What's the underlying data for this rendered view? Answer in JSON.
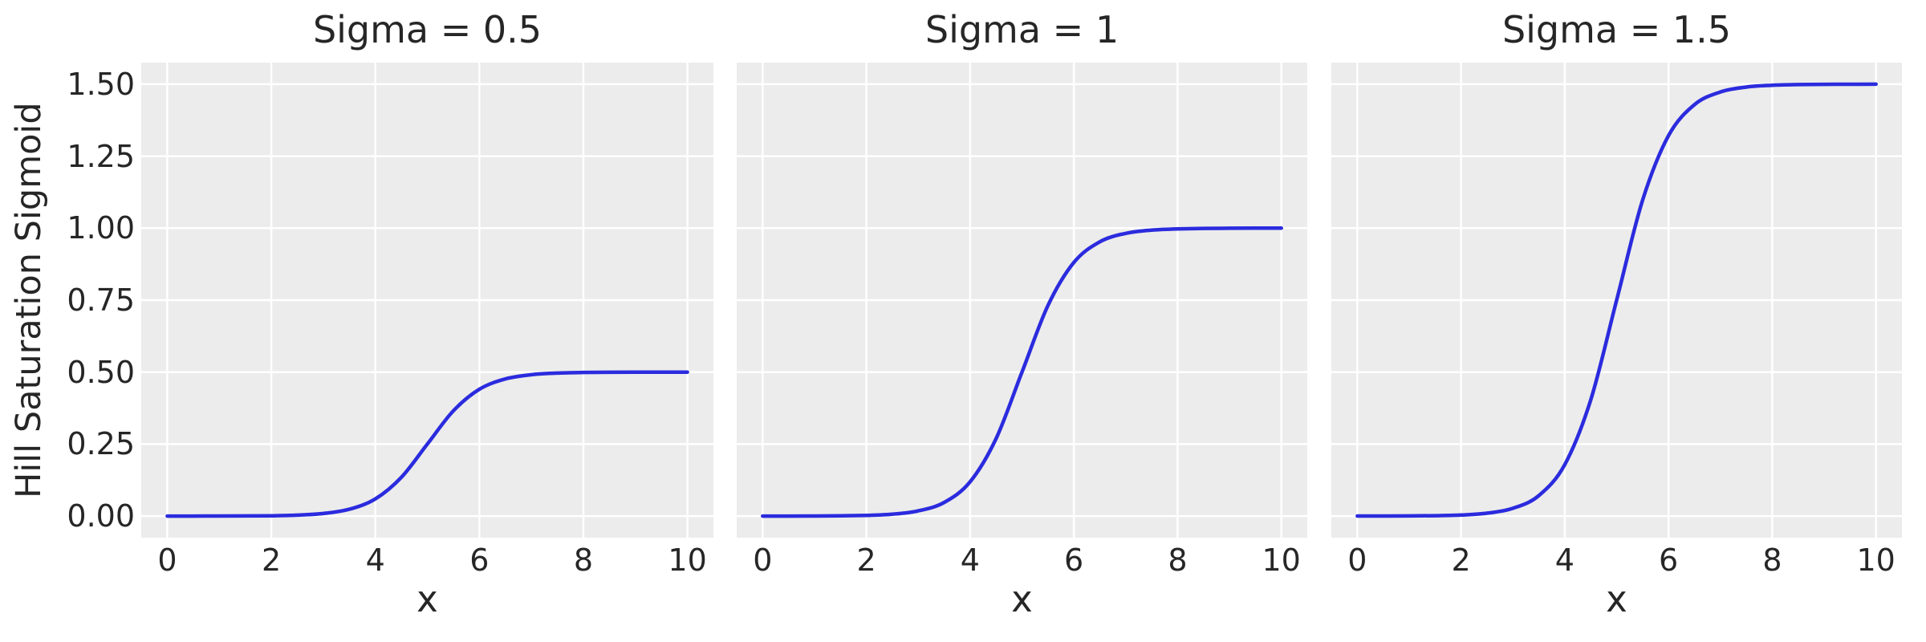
{
  "figure": {
    "ylabel": "Hill Saturation Sigmoid",
    "colors": {
      "background": "#ffffff",
      "axes_background": "#ececec",
      "grid": "#ffffff",
      "line": "#2b2bde",
      "text": "#262626"
    }
  },
  "chart_data": [
    {
      "type": "line",
      "title": "Sigma = 0.5",
      "sigma": 0.5,
      "xlabel": "x",
      "ylabel": "Hill Saturation Sigmoid",
      "xlim": [
        -0.5,
        10.5
      ],
      "ylim": [
        -0.075,
        1.575
      ],
      "xticks": [
        0,
        2,
        4,
        6,
        8,
        10
      ],
      "xtick_labels": [
        "0",
        "2",
        "4",
        "6",
        "8",
        "10"
      ],
      "yticks": [
        0,
        0.25,
        0.5,
        0.75,
        1.0,
        1.25,
        1.5
      ],
      "ytick_labels": [
        "0.00",
        "0.25",
        "0.50",
        "0.75",
        "1.00",
        "1.25",
        "1.50"
      ],
      "show_ytick_labels": true,
      "grid": true,
      "line_color": "#2b2bde",
      "x": [
        0,
        0.5,
        1,
        1.5,
        2,
        2.5,
        3,
        3.5,
        4,
        4.5,
        5,
        5.5,
        6,
        6.5,
        7,
        7.5,
        8,
        8.5,
        9,
        9.5,
        10
      ],
      "values": [
        0.0,
        0.0001,
        0.0002,
        0.0005,
        0.0012,
        0.0033,
        0.009,
        0.0237,
        0.0596,
        0.1345,
        0.25,
        0.3655,
        0.4404,
        0.4763,
        0.491,
        0.4967,
        0.4988,
        0.4995,
        0.4998,
        0.4999,
        0.5
      ]
    },
    {
      "type": "line",
      "title": "Sigma = 1",
      "sigma": 1.0,
      "xlabel": "x",
      "xlim": [
        -0.5,
        10.5
      ],
      "ylim": [
        -0.075,
        1.575
      ],
      "xticks": [
        0,
        2,
        4,
        6,
        8,
        10
      ],
      "xtick_labels": [
        "0",
        "2",
        "4",
        "6",
        "8",
        "10"
      ],
      "yticks": [
        0,
        0.25,
        0.5,
        0.75,
        1.0,
        1.25,
        1.5
      ],
      "ytick_labels": [
        "0.00",
        "0.25",
        "0.50",
        "0.75",
        "1.00",
        "1.25",
        "1.50"
      ],
      "show_ytick_labels": false,
      "grid": true,
      "line_color": "#2b2bde",
      "x": [
        0,
        0.5,
        1,
        1.5,
        2,
        2.5,
        3,
        3.5,
        4,
        4.5,
        5,
        5.5,
        6,
        6.5,
        7,
        7.5,
        8,
        8.5,
        9,
        9.5,
        10
      ],
      "values": [
        0.0,
        0.0001,
        0.0003,
        0.0009,
        0.0025,
        0.0067,
        0.018,
        0.0474,
        0.1192,
        0.2689,
        0.5,
        0.7311,
        0.8808,
        0.9526,
        0.982,
        0.9933,
        0.9975,
        0.9991,
        0.9997,
        0.9999,
        1.0
      ]
    },
    {
      "type": "line",
      "title": "Sigma = 1.5",
      "sigma": 1.5,
      "xlabel": "x",
      "xlim": [
        -0.5,
        10.5
      ],
      "ylim": [
        -0.075,
        1.575
      ],
      "xticks": [
        0,
        2,
        4,
        6,
        8,
        10
      ],
      "xtick_labels": [
        "0",
        "2",
        "4",
        "6",
        "8",
        "10"
      ],
      "yticks": [
        0,
        0.25,
        0.5,
        0.75,
        1.0,
        1.25,
        1.5
      ],
      "ytick_labels": [
        "0.00",
        "0.25",
        "0.50",
        "0.75",
        "1.00",
        "1.25",
        "1.50"
      ],
      "show_ytick_labels": false,
      "grid": true,
      "line_color": "#2b2bde",
      "x": [
        0,
        0.5,
        1,
        1.5,
        2,
        2.5,
        3,
        3.5,
        4,
        4.5,
        5,
        5.5,
        6,
        6.5,
        7,
        7.5,
        8,
        8.5,
        9,
        9.5,
        10
      ],
      "values": [
        0.0001,
        0.0002,
        0.0005,
        0.0014,
        0.0037,
        0.01,
        0.027,
        0.0711,
        0.1788,
        0.4034,
        0.75,
        1.0966,
        1.3212,
        1.4289,
        1.473,
        1.49,
        1.4963,
        1.4986,
        1.4995,
        1.4998,
        1.4999
      ]
    }
  ]
}
